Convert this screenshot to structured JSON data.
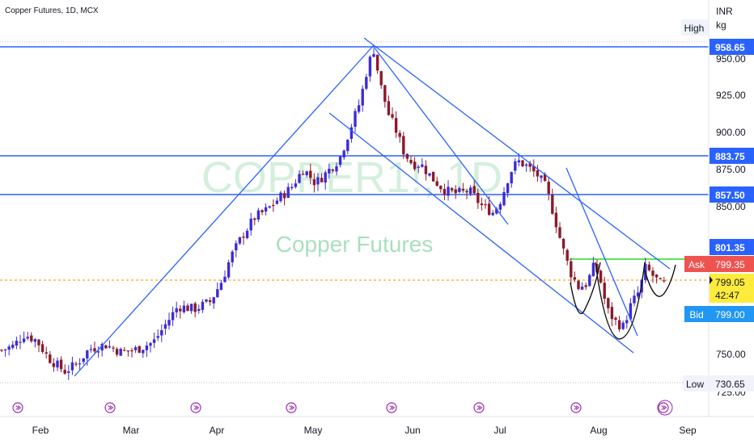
{
  "header": {
    "symbol_text": "Copper Futures, 1D, MCX"
  },
  "watermark": {
    "ticker": "COPPER1!, 1D",
    "name": "Copper Futures"
  },
  "axis": {
    "currency": "INR",
    "unit": "kg",
    "price_ticks": [
      "950.00",
      "925.00",
      "900.00",
      "875.00",
      "850.00",
      "750.00",
      "725.00"
    ],
    "month_labels": [
      "Feb",
      "Mar",
      "Apr",
      "May",
      "Jun",
      "Jul",
      "Aug",
      "Sep"
    ]
  },
  "tags": {
    "high_label": "High",
    "high_value": "958.65",
    "level_883": "883.75",
    "level_857": "857.50",
    "level_801": "801.35",
    "ask_label": "Ask",
    "ask_value": "799.35",
    "last_value": "799.05",
    "countdown": "42:47",
    "bid_label": "Bid",
    "bid_value": "799.00",
    "low_label": "Low",
    "low_value": "730.65"
  },
  "colors": {
    "up_candle": "#3d2cd4",
    "down_candle": "#8b1a2b",
    "trendline": "#2962ff",
    "horizontal_level": "#2962ff",
    "green_level": "#22dd22",
    "ask_tag": "#ef5350",
    "last_tag": "#ffeb3b",
    "bid_tag": "#2196f3",
    "watermark": "#b9e6c6"
  },
  "chart_data": {
    "type": "candlestick",
    "title": "Copper Futures, 1D, MCX",
    "ylabel": "INR / kg",
    "ylim": [
      722,
      965
    ],
    "x_months": [
      "Feb",
      "Mar",
      "Apr",
      "May",
      "Jun",
      "Jul",
      "Aug",
      "Sep"
    ],
    "levels": [
      {
        "name": "High",
        "value": 958.65
      },
      {
        "value": 883.75
      },
      {
        "value": 857.5
      },
      {
        "value": 801.35
      },
      {
        "name": "Ask",
        "value": 799.35
      },
      {
        "name": "Last",
        "value": 799.05
      },
      {
        "name": "Bid",
        "value": 799.0
      },
      {
        "name": "Low",
        "value": 730.65
      }
    ],
    "price_path": [
      [
        0,
        752
      ],
      [
        16,
        755
      ],
      [
        30,
        763
      ],
      [
        45,
        759
      ],
      [
        60,
        747
      ],
      [
        80,
        738
      ],
      [
        95,
        743
      ],
      [
        110,
        753
      ],
      [
        130,
        756
      ],
      [
        150,
        751
      ],
      [
        170,
        753
      ],
      [
        190,
        758
      ],
      [
        205,
        770
      ],
      [
        220,
        782
      ],
      [
        240,
        780
      ],
      [
        260,
        785
      ],
      [
        275,
        800
      ],
      [
        285,
        815
      ],
      [
        300,
        830
      ],
      [
        315,
        842
      ],
      [
        330,
        847
      ],
      [
        345,
        855
      ],
      [
        360,
        862
      ],
      [
        375,
        875
      ],
      [
        390,
        865
      ],
      [
        405,
        873
      ],
      [
        420,
        882
      ],
      [
        435,
        905
      ],
      [
        445,
        920
      ],
      [
        455,
        945
      ],
      [
        462,
        955
      ],
      [
        470,
        932
      ],
      [
        480,
        912
      ],
      [
        490,
        900
      ],
      [
        500,
        885
      ],
      [
        510,
        878
      ],
      [
        520,
        878
      ],
      [
        535,
        868
      ],
      [
        550,
        860
      ],
      [
        565,
        858
      ],
      [
        580,
        860
      ],
      [
        595,
        850
      ],
      [
        610,
        845
      ],
      [
        620,
        855
      ],
      [
        630,
        872
      ],
      [
        640,
        880
      ],
      [
        650,
        877
      ],
      [
        665,
        870
      ],
      [
        675,
        862
      ],
      [
        685,
        843
      ],
      [
        695,
        822
      ],
      [
        705,
        805
      ],
      [
        715,
        795
      ],
      [
        725,
        797
      ],
      [
        735,
        810
      ],
      [
        742,
        800
      ],
      [
        750,
        780
      ],
      [
        760,
        772
      ],
      [
        770,
        768
      ],
      [
        780,
        783
      ],
      [
        790,
        792
      ],
      [
        798,
        808
      ],
      [
        808,
        802
      ],
      [
        818,
        796
      ],
      [
        825,
        799
      ]
    ]
  }
}
